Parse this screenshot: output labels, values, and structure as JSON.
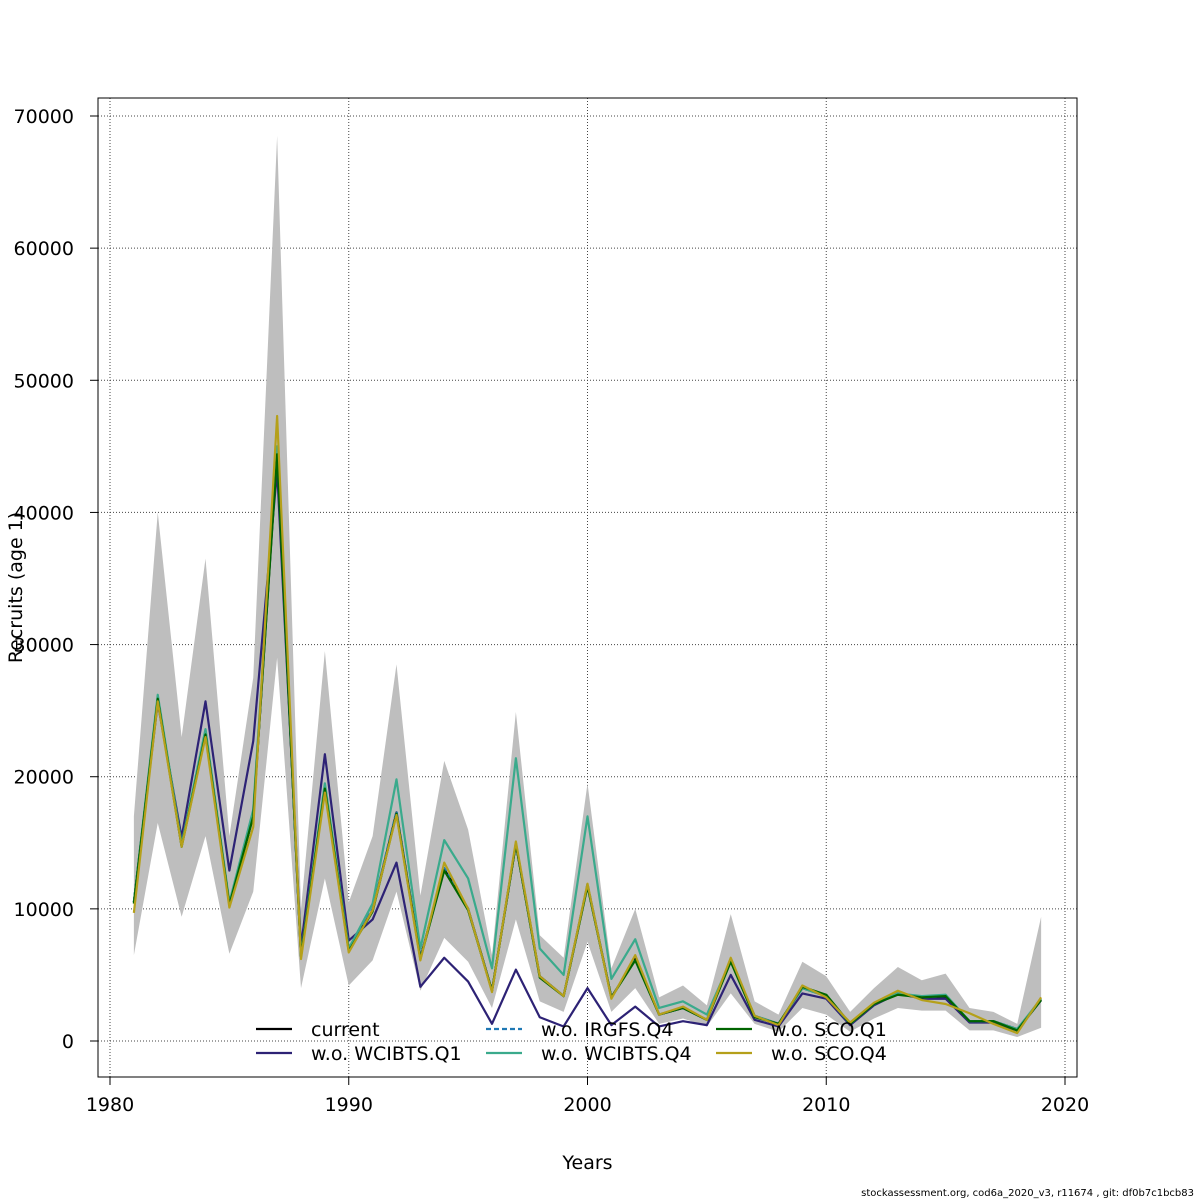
{
  "chart_data": {
    "type": "line",
    "title": "",
    "xlabel": "Years",
    "ylabel": "Recruits (age 1)",
    "xlim": [
      1980,
      2020
    ],
    "ylim": [
      -2500,
      74000
    ],
    "xticks": [
      1980,
      1990,
      2000,
      2010,
      2020
    ],
    "yticks": [
      0,
      10000,
      20000,
      30000,
      40000,
      50000,
      60000,
      70000
    ],
    "grid": true,
    "legend_position": "bottom-center",
    "x": [
      1981,
      1982,
      1983,
      1984,
      1985,
      1986,
      1987,
      1988,
      1989,
      1990,
      1991,
      1992,
      1993,
      1994,
      1995,
      1996,
      1997,
      1998,
      1999,
      2000,
      2001,
      2002,
      2003,
      2004,
      2005,
      2006,
      2007,
      2008,
      2009,
      2010,
      2011,
      2012,
      2013,
      2014,
      2015,
      2016,
      2017,
      2018,
      2019
    ],
    "confidence_band": {
      "color": "#bebebe",
      "upper": [
        17000,
        40000,
        23000,
        36500,
        15500,
        27500,
        68500,
        10000,
        29500,
        10500,
        15500,
        28500,
        11000,
        21200,
        16000,
        6500,
        24900,
        8000,
        6300,
        19500,
        5500,
        10000,
        3300,
        4200,
        2700,
        9600,
        3000,
        2000,
        6000,
        4900,
        2200,
        4000,
        5600,
        4600,
        5100,
        2500,
        2200,
        1300,
        9400
      ],
      "lower": [
        6500,
        16500,
        9400,
        15500,
        6600,
        11300,
        29000,
        4000,
        12300,
        4200,
        6100,
        11300,
        3800,
        7800,
        6000,
        2500,
        9200,
        3000,
        2200,
        7500,
        2200,
        4000,
        1300,
        1700,
        1100,
        3600,
        1300,
        700,
        2500,
        2000,
        700,
        1700,
        2500,
        2300,
        2300,
        800,
        800,
        300,
        1000
      ]
    },
    "series": [
      {
        "name": "current",
        "color": "#000000",
        "dash": "",
        "values": [
          10500,
          25900,
          14800,
          23300,
          10300,
          17000,
          44600,
          6400,
          19200,
          6900,
          9900,
          17300,
          6300,
          13000,
          10000,
          3800,
          14900,
          4900,
          3400,
          11800,
          3300,
          6200,
          2000,
          2500,
          1600,
          6100,
          1900,
          1300,
          4000,
          3400,
          1300,
          2800,
          3600,
          3300,
          3300,
          1500,
          1500,
          900,
          3100
        ]
      },
      {
        "name": "w.o. WCIBTS.Q1",
        "color": "#2d2275",
        "dash": "",
        "values": [
          10500,
          25600,
          15400,
          25700,
          12900,
          22700,
          43200,
          7100,
          21700,
          7600,
          9200,
          13500,
          4100,
          6300,
          4500,
          1300,
          5400,
          1800,
          1100,
          4000,
          1200,
          2600,
          1100,
          1500,
          1200,
          5000,
          1600,
          1100,
          3600,
          3200,
          1200,
          2700,
          3600,
          3200,
          3200,
          1400,
          1400,
          800,
          3100
        ]
      },
      {
        "name": "w.o. IRGFS.Q4",
        "color": "#1f78b4",
        "dash": "5,3",
        "values": [
          10500,
          26000,
          14800,
          23500,
          10400,
          17200,
          44700,
          6400,
          19300,
          7000,
          10000,
          17400,
          6300,
          13100,
          10000,
          3800,
          15000,
          4900,
          3400,
          11900,
          3300,
          6200,
          2000,
          2500,
          1600,
          6100,
          1900,
          1300,
          4000,
          3400,
          1300,
          2800,
          3600,
          3300,
          3400,
          1500,
          1500,
          900,
          3100
        ]
      },
      {
        "name": "w.o. WCIBTS.Q4",
        "color": "#3aaa8c",
        "dash": "",
        "values": [
          10500,
          26200,
          14900,
          23600,
          10500,
          17500,
          45000,
          6500,
          19500,
          7000,
          10400,
          19800,
          7000,
          15200,
          12300,
          5500,
          21400,
          7000,
          5000,
          17000,
          4700,
          7700,
          2500,
          3000,
          2000,
          6100,
          1900,
          1300,
          4000,
          3400,
          1300,
          2800,
          3600,
          3400,
          3500,
          1500,
          1500,
          900,
          3200
        ]
      },
      {
        "name": "w.o. SCO.Q1",
        "color": "#006400",
        "dash": "",
        "values": [
          10400,
          25900,
          14700,
          23200,
          10300,
          17000,
          44400,
          6400,
          19100,
          6800,
          9800,
          17200,
          6200,
          12900,
          9900,
          3800,
          14900,
          4800,
          3400,
          11700,
          3300,
          6100,
          2000,
          2500,
          1600,
          6000,
          1800,
          1300,
          4100,
          3500,
          1300,
          2800,
          3500,
          3300,
          3400,
          1500,
          1500,
          800,
          3100
        ]
      },
      {
        "name": "w.o. SCO.Q4",
        "color": "#b5a01a",
        "dash": "",
        "values": [
          9700,
          25700,
          14700,
          23000,
          10100,
          16200,
          47300,
          6200,
          18800,
          6700,
          9900,
          17100,
          6100,
          13500,
          10000,
          3700,
          15100,
          4900,
          3400,
          11900,
          3200,
          6500,
          2000,
          2600,
          1600,
          6300,
          1900,
          1200,
          4200,
          3300,
          1400,
          2900,
          3800,
          3100,
          2800,
          2100,
          1300,
          600,
          3300
        ]
      }
    ]
  },
  "footer": {
    "note": "stockassessment.org, cod6a_2020_v3, r11674 , git: df0b7c1bcb83"
  }
}
